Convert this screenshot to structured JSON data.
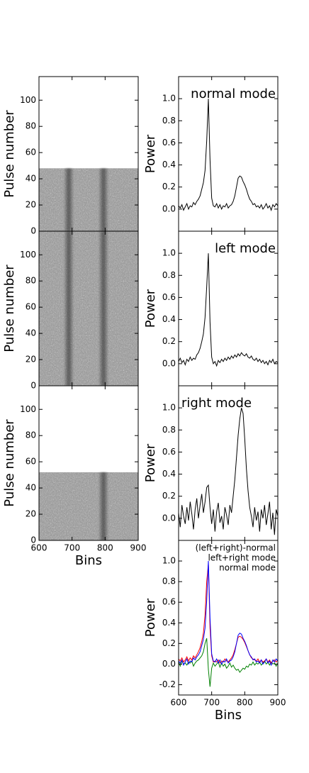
{
  "chart_data": [
    {
      "type": "image",
      "ylabel": "Pulse number",
      "xlim": [
        600,
        900
      ],
      "xticks": [
        600,
        700,
        800,
        900
      ],
      "ylim": [
        0,
        118
      ],
      "yticks": [
        0,
        20,
        40,
        60,
        80,
        100
      ],
      "pulses": 48,
      "track_bins": [
        690,
        795
      ]
    },
    {
      "type": "image",
      "ylabel": "Pulse number",
      "xlim": [
        600,
        900
      ],
      "xticks": [
        600,
        700,
        800,
        900
      ],
      "ylim": [
        0,
        118
      ],
      "yticks": [
        0,
        20,
        40,
        60,
        80,
        100
      ],
      "pulses": 118,
      "track_bins": [
        690,
        795
      ]
    },
    {
      "type": "image",
      "ylabel": "Pulse number",
      "xlabel": "Bins",
      "xlim": [
        600,
        900
      ],
      "xticks": [
        600,
        700,
        800,
        900
      ],
      "ylim": [
        0,
        118
      ],
      "yticks": [
        0,
        20,
        40,
        60,
        80,
        100
      ],
      "pulses": 52,
      "track_bins": [
        795
      ]
    },
    {
      "type": "line",
      "ylabel": "Power",
      "annotation": "normal mode",
      "xlim": [
        600,
        900
      ],
      "xticks": [
        600,
        700,
        800,
        900
      ],
      "ylim": [
        -0.2,
        1.2
      ],
      "yticks": [
        {
          "value": 0,
          "label": "0.0"
        },
        0.2,
        0.4,
        0.6,
        0.8,
        {
          "value": 1,
          "label": "1.0"
        }
      ],
      "x": [
        600,
        605,
        610,
        615,
        620,
        625,
        630,
        635,
        640,
        645,
        650,
        655,
        660,
        665,
        670,
        675,
        680,
        685,
        690,
        695,
        700,
        705,
        710,
        715,
        720,
        725,
        730,
        735,
        740,
        745,
        750,
        755,
        760,
        765,
        770,
        775,
        780,
        785,
        790,
        795,
        800,
        805,
        810,
        815,
        820,
        825,
        830,
        835,
        840,
        845,
        850,
        855,
        860,
        865,
        870,
        875,
        880,
        885,
        890,
        895,
        900
      ],
      "series": [
        {
          "color": "#000000",
          "values": [
            0.03,
            0.01,
            0.04,
            -0.01,
            0.02,
            0.05,
            0.0,
            0.03,
            0.02,
            0.06,
            0.04,
            0.07,
            0.09,
            0.12,
            0.18,
            0.24,
            0.35,
            0.62,
            1.0,
            0.45,
            0.1,
            0.03,
            0.02,
            0.05,
            0.01,
            0.04,
            0.0,
            0.03,
            0.02,
            0.05,
            0.01,
            0.03,
            0.04,
            0.07,
            0.12,
            0.2,
            0.28,
            0.3,
            0.29,
            0.25,
            0.22,
            0.18,
            0.13,
            0.09,
            0.07,
            0.04,
            0.05,
            0.02,
            0.03,
            0.01,
            0.04,
            0.0,
            0.02,
            0.05,
            0.01,
            0.03,
            -0.01,
            0.04,
            0.02,
            0.05,
            0.03
          ]
        }
      ]
    },
    {
      "type": "line",
      "ylabel": "Power",
      "annotation": "left mode",
      "xlim": [
        600,
        900
      ],
      "xticks": [
        600,
        700,
        800,
        900
      ],
      "ylim": [
        -0.2,
        1.2
      ],
      "yticks": [
        {
          "value": 0,
          "label": "0.0"
        },
        0.2,
        0.4,
        0.6,
        0.8,
        {
          "value": 1,
          "label": "1.0"
        }
      ],
      "x": [
        600,
        605,
        610,
        615,
        620,
        625,
        630,
        635,
        640,
        645,
        650,
        655,
        660,
        665,
        670,
        675,
        680,
        685,
        690,
        695,
        700,
        705,
        710,
        715,
        720,
        725,
        730,
        735,
        740,
        745,
        750,
        755,
        760,
        765,
        770,
        775,
        780,
        785,
        790,
        795,
        800,
        805,
        810,
        815,
        820,
        825,
        830,
        835,
        840,
        845,
        850,
        855,
        860,
        865,
        870,
        875,
        880,
        885,
        890,
        895,
        900
      ],
      "series": [
        {
          "color": "#000000",
          "values": [
            0.02,
            0.05,
            0.01,
            0.03,
            -0.01,
            0.04,
            0.02,
            0.06,
            0.03,
            0.05,
            0.04,
            0.08,
            0.1,
            0.14,
            0.2,
            0.27,
            0.42,
            0.7,
            1.0,
            0.38,
            0.06,
            0.0,
            0.02,
            -0.02,
            0.03,
            0.01,
            0.04,
            0.02,
            0.05,
            0.03,
            0.06,
            0.04,
            0.07,
            0.05,
            0.08,
            0.06,
            0.09,
            0.07,
            0.1,
            0.08,
            0.07,
            0.09,
            0.06,
            0.05,
            0.07,
            0.04,
            0.03,
            0.05,
            0.02,
            0.04,
            0.01,
            0.03,
            0.0,
            0.02,
            -0.01,
            0.03,
            0.01,
            0.04,
            0.0,
            0.02,
            0.01
          ]
        }
      ]
    },
    {
      "type": "line",
      "ylabel": "Power",
      "annotation": "right mode",
      "xlim": [
        600,
        900
      ],
      "xticks": [
        600,
        700,
        800,
        900
      ],
      "ylim": [
        -0.2,
        1.2
      ],
      "yticks": [
        {
          "value": 0,
          "label": "0.0"
        },
        0.2,
        0.4,
        0.6,
        0.8,
        {
          "value": 1,
          "label": "1.0"
        }
      ],
      "x": [
        600,
        605,
        610,
        615,
        620,
        625,
        630,
        635,
        640,
        645,
        650,
        655,
        660,
        665,
        670,
        675,
        680,
        685,
        690,
        695,
        700,
        705,
        710,
        715,
        720,
        725,
        730,
        735,
        740,
        745,
        750,
        755,
        760,
        765,
        770,
        775,
        780,
        785,
        790,
        795,
        800,
        805,
        810,
        815,
        820,
        825,
        830,
        835,
        840,
        845,
        850,
        855,
        860,
        865,
        870,
        875,
        880,
        885,
        890,
        895,
        900
      ],
      "series": [
        {
          "color": "#000000",
          "values": [
            0.05,
            -0.08,
            0.12,
            0.02,
            -0.05,
            0.1,
            -0.02,
            0.15,
            0.04,
            -0.1,
            0.08,
            0.18,
            0.0,
            0.12,
            0.22,
            0.05,
            0.15,
            0.28,
            0.3,
            0.1,
            -0.05,
            0.08,
            -0.12,
            0.06,
            0.14,
            -0.04,
            0.02,
            -0.1,
            0.1,
            0.03,
            -0.06,
            0.12,
            0.05,
            0.2,
            0.35,
            0.55,
            0.75,
            0.9,
            1.0,
            0.95,
            0.72,
            0.45,
            0.25,
            0.1,
            0.02,
            -0.08,
            0.1,
            -0.02,
            0.06,
            -0.12,
            0.08,
            0.0,
            0.12,
            -0.06,
            0.04,
            0.15,
            -0.1,
            0.05,
            -0.15,
            0.08,
            0.02
          ]
        }
      ]
    },
    {
      "type": "line",
      "ylabel": "Power",
      "xlabel": "Bins",
      "legend": "upper right",
      "xlim": [
        600,
        900
      ],
      "xticks": [
        600,
        700,
        800,
        900
      ],
      "ylim": [
        -0.3,
        1.2
      ],
      "yticks": [
        -0.2,
        {
          "value": 0,
          "label": "0.0"
        },
        0.2,
        0.4,
        0.6,
        0.8,
        {
          "value": 1,
          "label": "1.0"
        }
      ],
      "x": [
        600,
        605,
        610,
        615,
        620,
        625,
        630,
        635,
        640,
        645,
        650,
        655,
        660,
        665,
        670,
        675,
        680,
        685,
        690,
        695,
        700,
        705,
        710,
        715,
        720,
        725,
        730,
        735,
        740,
        745,
        750,
        755,
        760,
        765,
        770,
        775,
        780,
        785,
        790,
        795,
        800,
        805,
        810,
        815,
        820,
        825,
        830,
        835,
        840,
        845,
        850,
        855,
        860,
        865,
        870,
        875,
        880,
        885,
        890,
        895,
        900
      ],
      "series": [
        {
          "name": "(left+right)-normal",
          "color": "#008000",
          "values": [
            0.02,
            -0.02,
            0.03,
            0.0,
            0.01,
            -0.01,
            0.02,
            0.01,
            0.03,
            -0.02,
            0.01,
            0.03,
            0.04,
            0.06,
            0.08,
            0.12,
            0.2,
            0.25,
            -0.05,
            -0.22,
            -0.04,
            0.01,
            -0.02,
            0.0,
            0.02,
            -0.03,
            0.01,
            -0.02,
            0.0,
            -0.04,
            -0.02,
            0.01,
            -0.03,
            -0.01,
            -0.04,
            -0.06,
            -0.05,
            -0.08,
            -0.06,
            -0.04,
            -0.05,
            -0.02,
            -0.03,
            0.0,
            -0.01,
            0.02,
            -0.01,
            0.01,
            0.0,
            0.02,
            -0.01,
            0.01,
            0.03,
            0.0,
            0.02,
            -0.01,
            0.02,
            0.0,
            0.01,
            -0.02,
            0.01
          ]
        },
        {
          "name": "left+right mode",
          "color": "#ff0000",
          "values": [
            0.05,
            0.03,
            0.06,
            0.02,
            0.04,
            0.07,
            0.03,
            0.06,
            0.04,
            0.08,
            0.06,
            0.09,
            0.12,
            0.16,
            0.22,
            0.3,
            0.48,
            0.8,
            0.97,
            0.35,
            0.08,
            0.02,
            0.03,
            0.02,
            0.04,
            0.01,
            0.03,
            0.02,
            0.05,
            0.03,
            0.02,
            0.04,
            0.06,
            0.09,
            0.14,
            0.2,
            0.26,
            0.27,
            0.26,
            0.24,
            0.21,
            0.17,
            0.13,
            0.09,
            0.06,
            0.05,
            0.04,
            0.03,
            0.05,
            0.02,
            0.04,
            0.02,
            0.03,
            0.05,
            0.02,
            0.04,
            0.01,
            0.03,
            0.04,
            0.02,
            0.04
          ]
        },
        {
          "name": "normal mode",
          "color": "#0000ff",
          "values": [
            0.03,
            0.01,
            0.04,
            -0.01,
            0.02,
            0.05,
            0.0,
            0.03,
            0.02,
            0.06,
            0.04,
            0.07,
            0.09,
            0.12,
            0.18,
            0.24,
            0.35,
            0.62,
            1.0,
            0.45,
            0.1,
            0.03,
            0.02,
            0.05,
            0.01,
            0.04,
            0.0,
            0.03,
            0.02,
            0.05,
            0.01,
            0.03,
            0.04,
            0.07,
            0.12,
            0.2,
            0.28,
            0.3,
            0.29,
            0.25,
            0.22,
            0.18,
            0.13,
            0.09,
            0.07,
            0.04,
            0.05,
            0.02,
            0.03,
            0.01,
            0.04,
            0.0,
            0.02,
            0.05,
            0.01,
            0.03,
            -0.01,
            0.04,
            0.02,
            0.05,
            0.03
          ]
        }
      ]
    }
  ]
}
